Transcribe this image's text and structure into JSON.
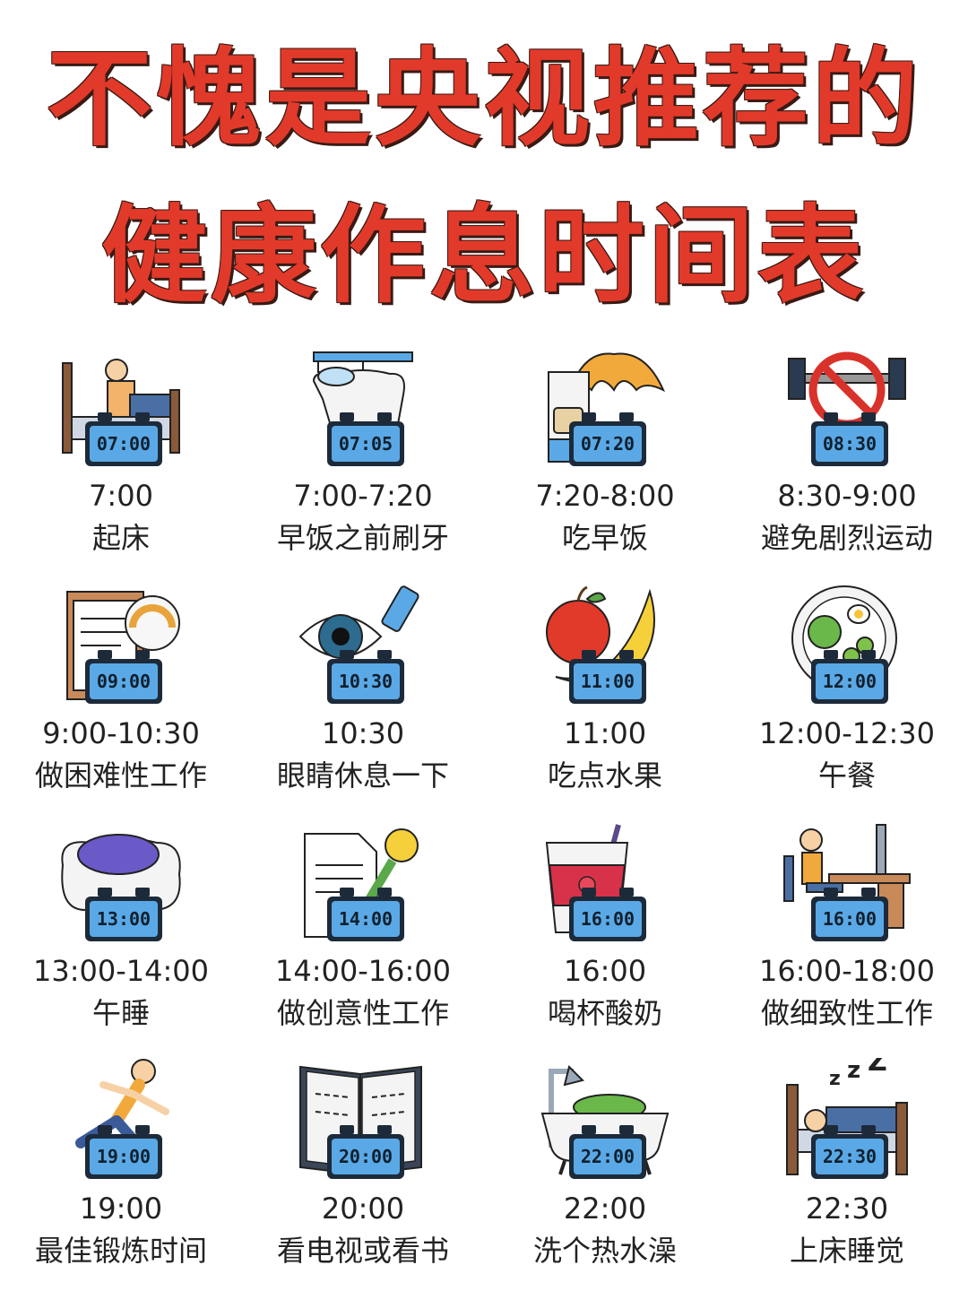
{
  "title": {
    "line1": "不愧是央视推荐的",
    "line2": "健康作息时间表"
  },
  "items": [
    {
      "clock": "07:00",
      "time": "7:00",
      "label": "起床",
      "icon": "bed-wakeup-icon"
    },
    {
      "clock": "07:05",
      "time": "7:00-7:20",
      "label": "早饭之前刷牙",
      "icon": "tooth-brush-icon"
    },
    {
      "clock": "07:20",
      "time": "7:20-8:00",
      "label": "吃早饭",
      "icon": "breakfast-icon"
    },
    {
      "clock": "08:30",
      "time": "8:30-9:00",
      "label": "避免剧烈运动",
      "icon": "no-exercise-icon"
    },
    {
      "clock": "09:00",
      "time": "9:00-10:30",
      "label": "做困难性工作",
      "icon": "clipboard-gauge-icon"
    },
    {
      "clock": "10:30",
      "time": "10:30",
      "label": "眼睛休息一下",
      "icon": "eye-drops-icon"
    },
    {
      "clock": "11:00",
      "time": "11:00",
      "label": "吃点水果",
      "icon": "fruit-icon"
    },
    {
      "clock": "12:00",
      "time": "12:00-12:30",
      "label": "午餐",
      "icon": "lunch-plate-icon"
    },
    {
      "clock": "13:00",
      "time": "13:00-14:00",
      "label": "午睡",
      "icon": "sleep-mask-pillow-icon"
    },
    {
      "clock": "14:00",
      "time": "14:00-16:00",
      "label": "做创意性工作",
      "icon": "document-lightbulb-icon"
    },
    {
      "clock": "16:00",
      "time": "16:00",
      "label": "喝杯酸奶",
      "icon": "yogurt-cup-icon"
    },
    {
      "clock": "16:00",
      "time": "16:00-18:00",
      "label": "做细致性工作",
      "icon": "desk-worker-icon"
    },
    {
      "clock": "19:00",
      "time": "19:00",
      "label": "最佳锻炼时间",
      "icon": "runner-icon"
    },
    {
      "clock": "20:00",
      "time": "20:00",
      "label": "看电视或看书",
      "icon": "open-book-icon"
    },
    {
      "clock": "22:00",
      "time": "22:00",
      "label": "洗个热水澡",
      "icon": "bathtub-icon"
    },
    {
      "clock": "22:30",
      "time": "22:30",
      "label": "上床睡觉",
      "icon": "bed-sleep-icon"
    }
  ],
  "colors": {
    "title": "#e23a2a",
    "clock": "#5aa9e6",
    "clock_frame": "#1d2a3a"
  }
}
